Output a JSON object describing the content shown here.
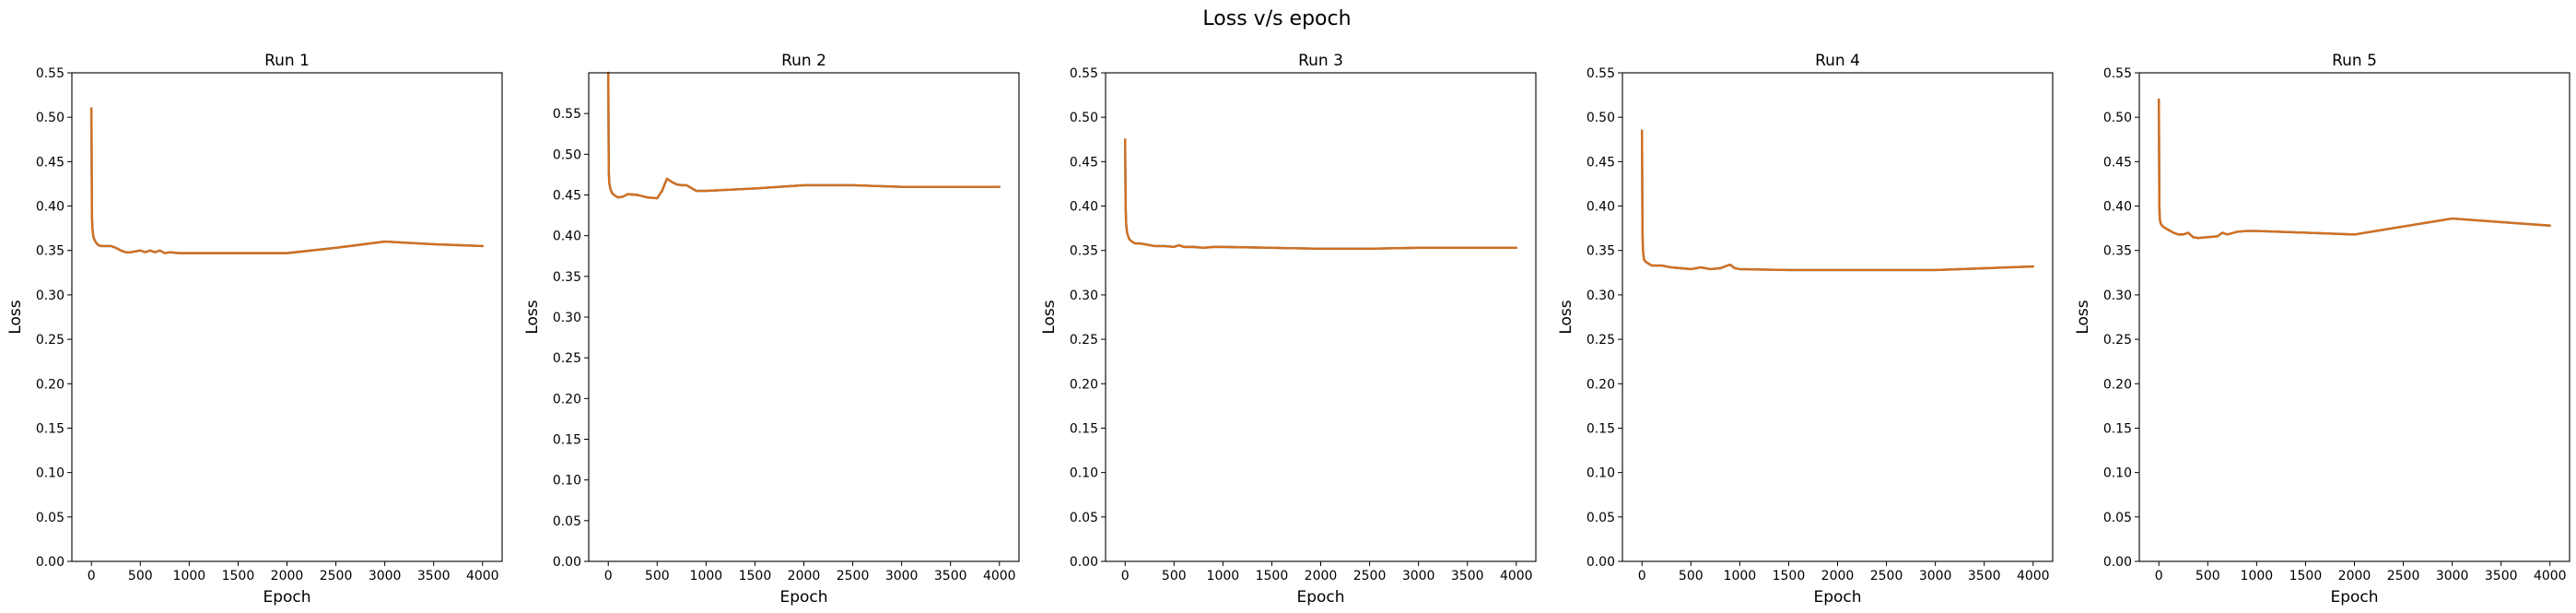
{
  "figure": {
    "title": "Loss v/s epoch",
    "colors": {
      "line_under": "#1f77b4",
      "line": "#ff7f0e",
      "line_blend": "#d46f1e"
    }
  },
  "chart_data": [
    {
      "type": "line",
      "title": "Run 1",
      "xlabel": "Epoch",
      "ylabel": "Loss",
      "xlim": [
        -200,
        4200
      ],
      "ylim": [
        0.0,
        0.55
      ],
      "xticks": [
        0,
        500,
        1000,
        1500,
        2000,
        2500,
        3000,
        3500,
        4000
      ],
      "yticks": [
        0.0,
        0.05,
        0.1,
        0.15,
        0.2,
        0.25,
        0.3,
        0.35,
        0.4,
        0.45,
        0.5,
        0.55
      ],
      "series": [
        {
          "x": [
            0,
            5,
            10,
            20,
            40,
            70,
            100,
            150,
            200,
            250,
            300,
            350,
            400,
            500,
            550,
            600,
            650,
            700,
            750,
            800,
            900,
            1000,
            1500,
            2000,
            2500,
            3000,
            3500,
            4000
          ],
          "values": [
            0.51,
            0.39,
            0.375,
            0.365,
            0.36,
            0.356,
            0.355,
            0.355,
            0.355,
            0.353,
            0.35,
            0.348,
            0.348,
            0.35,
            0.348,
            0.35,
            0.348,
            0.35,
            0.347,
            0.348,
            0.347,
            0.347,
            0.347,
            0.347,
            0.353,
            0.36,
            0.357,
            0.355
          ]
        }
      ]
    },
    {
      "type": "line",
      "title": "Run 2",
      "xlabel": "Epoch",
      "ylabel": "Loss",
      "xlim": [
        -200,
        4200
      ],
      "ylim": [
        0.0,
        0.6
      ],
      "xticks": [
        0,
        500,
        1000,
        1500,
        2000,
        2500,
        3000,
        3500,
        4000
      ],
      "yticks": [
        0.0,
        0.05,
        0.1,
        0.15,
        0.2,
        0.25,
        0.3,
        0.35,
        0.4,
        0.45,
        0.5,
        0.55
      ],
      "series": [
        {
          "x": [
            0,
            5,
            10,
            20,
            40,
            70,
            100,
            150,
            200,
            300,
            400,
            500,
            550,
            600,
            650,
            700,
            750,
            800,
            900,
            1000,
            1500,
            2000,
            2500,
            3000,
            3500,
            4000
          ],
          "values": [
            0.6,
            0.48,
            0.465,
            0.458,
            0.452,
            0.449,
            0.447,
            0.448,
            0.451,
            0.45,
            0.447,
            0.446,
            0.455,
            0.47,
            0.466,
            0.463,
            0.462,
            0.462,
            0.455,
            0.455,
            0.458,
            0.462,
            0.462,
            0.46,
            0.46,
            0.46
          ]
        }
      ]
    },
    {
      "type": "line",
      "title": "Run 3",
      "xlabel": "Epoch",
      "ylabel": "Loss",
      "xlim": [
        -200,
        4200
      ],
      "ylim": [
        0.0,
        0.55
      ],
      "xticks": [
        0,
        500,
        1000,
        1500,
        2000,
        2500,
        3000,
        3500,
        4000
      ],
      "yticks": [
        0.0,
        0.05,
        0.1,
        0.15,
        0.2,
        0.25,
        0.3,
        0.35,
        0.4,
        0.45,
        0.5,
        0.55
      ],
      "series": [
        {
          "x": [
            0,
            5,
            10,
            20,
            40,
            70,
            100,
            150,
            200,
            300,
            400,
            500,
            550,
            600,
            700,
            800,
            900,
            1000,
            1500,
            2000,
            2500,
            3000,
            3500,
            4000
          ],
          "values": [
            0.475,
            0.4,
            0.38,
            0.37,
            0.363,
            0.36,
            0.358,
            0.358,
            0.357,
            0.355,
            0.355,
            0.354,
            0.356,
            0.354,
            0.354,
            0.353,
            0.354,
            0.354,
            0.353,
            0.352,
            0.352,
            0.353,
            0.353,
            0.353
          ]
        }
      ]
    },
    {
      "type": "line",
      "title": "Run 4",
      "xlabel": "Epoch",
      "ylabel": "Loss",
      "xlim": [
        -200,
        4200
      ],
      "ylim": [
        0.0,
        0.55
      ],
      "xticks": [
        0,
        500,
        1000,
        1500,
        2000,
        2500,
        3000,
        3500,
        4000
      ],
      "yticks": [
        0.0,
        0.05,
        0.1,
        0.15,
        0.2,
        0.25,
        0.3,
        0.35,
        0.4,
        0.45,
        0.5,
        0.55
      ],
      "series": [
        {
          "x": [
            0,
            5,
            10,
            20,
            40,
            70,
            100,
            200,
            300,
            400,
            500,
            600,
            700,
            800,
            900,
            950,
            1000,
            1500,
            2000,
            2500,
            3000,
            3500,
            4000
          ],
          "values": [
            0.485,
            0.37,
            0.35,
            0.34,
            0.337,
            0.335,
            0.333,
            0.333,
            0.331,
            0.33,
            0.329,
            0.331,
            0.329,
            0.33,
            0.334,
            0.33,
            0.329,
            0.328,
            0.328,
            0.328,
            0.328,
            0.33,
            0.332
          ]
        }
      ]
    },
    {
      "type": "line",
      "title": "Run 5",
      "xlabel": "Epoch",
      "ylabel": "Loss",
      "xlim": [
        -200,
        4200
      ],
      "ylim": [
        0.0,
        0.55
      ],
      "xticks": [
        0,
        500,
        1000,
        1500,
        2000,
        2500,
        3000,
        3500,
        4000
      ],
      "yticks": [
        0.0,
        0.05,
        0.1,
        0.15,
        0.2,
        0.25,
        0.3,
        0.35,
        0.4,
        0.45,
        0.5,
        0.55
      ],
      "series": [
        {
          "x": [
            0,
            5,
            10,
            20,
            40,
            70,
            100,
            150,
            200,
            250,
            300,
            350,
            400,
            500,
            600,
            650,
            700,
            800,
            900,
            1000,
            1500,
            2000,
            2500,
            3000,
            3500,
            4000
          ],
          "values": [
            0.52,
            0.4,
            0.385,
            0.38,
            0.377,
            0.375,
            0.373,
            0.37,
            0.368,
            0.368,
            0.37,
            0.365,
            0.364,
            0.365,
            0.366,
            0.37,
            0.368,
            0.371,
            0.372,
            0.372,
            0.37,
            0.368,
            0.377,
            0.386,
            0.382,
            0.378
          ]
        }
      ]
    }
  ]
}
